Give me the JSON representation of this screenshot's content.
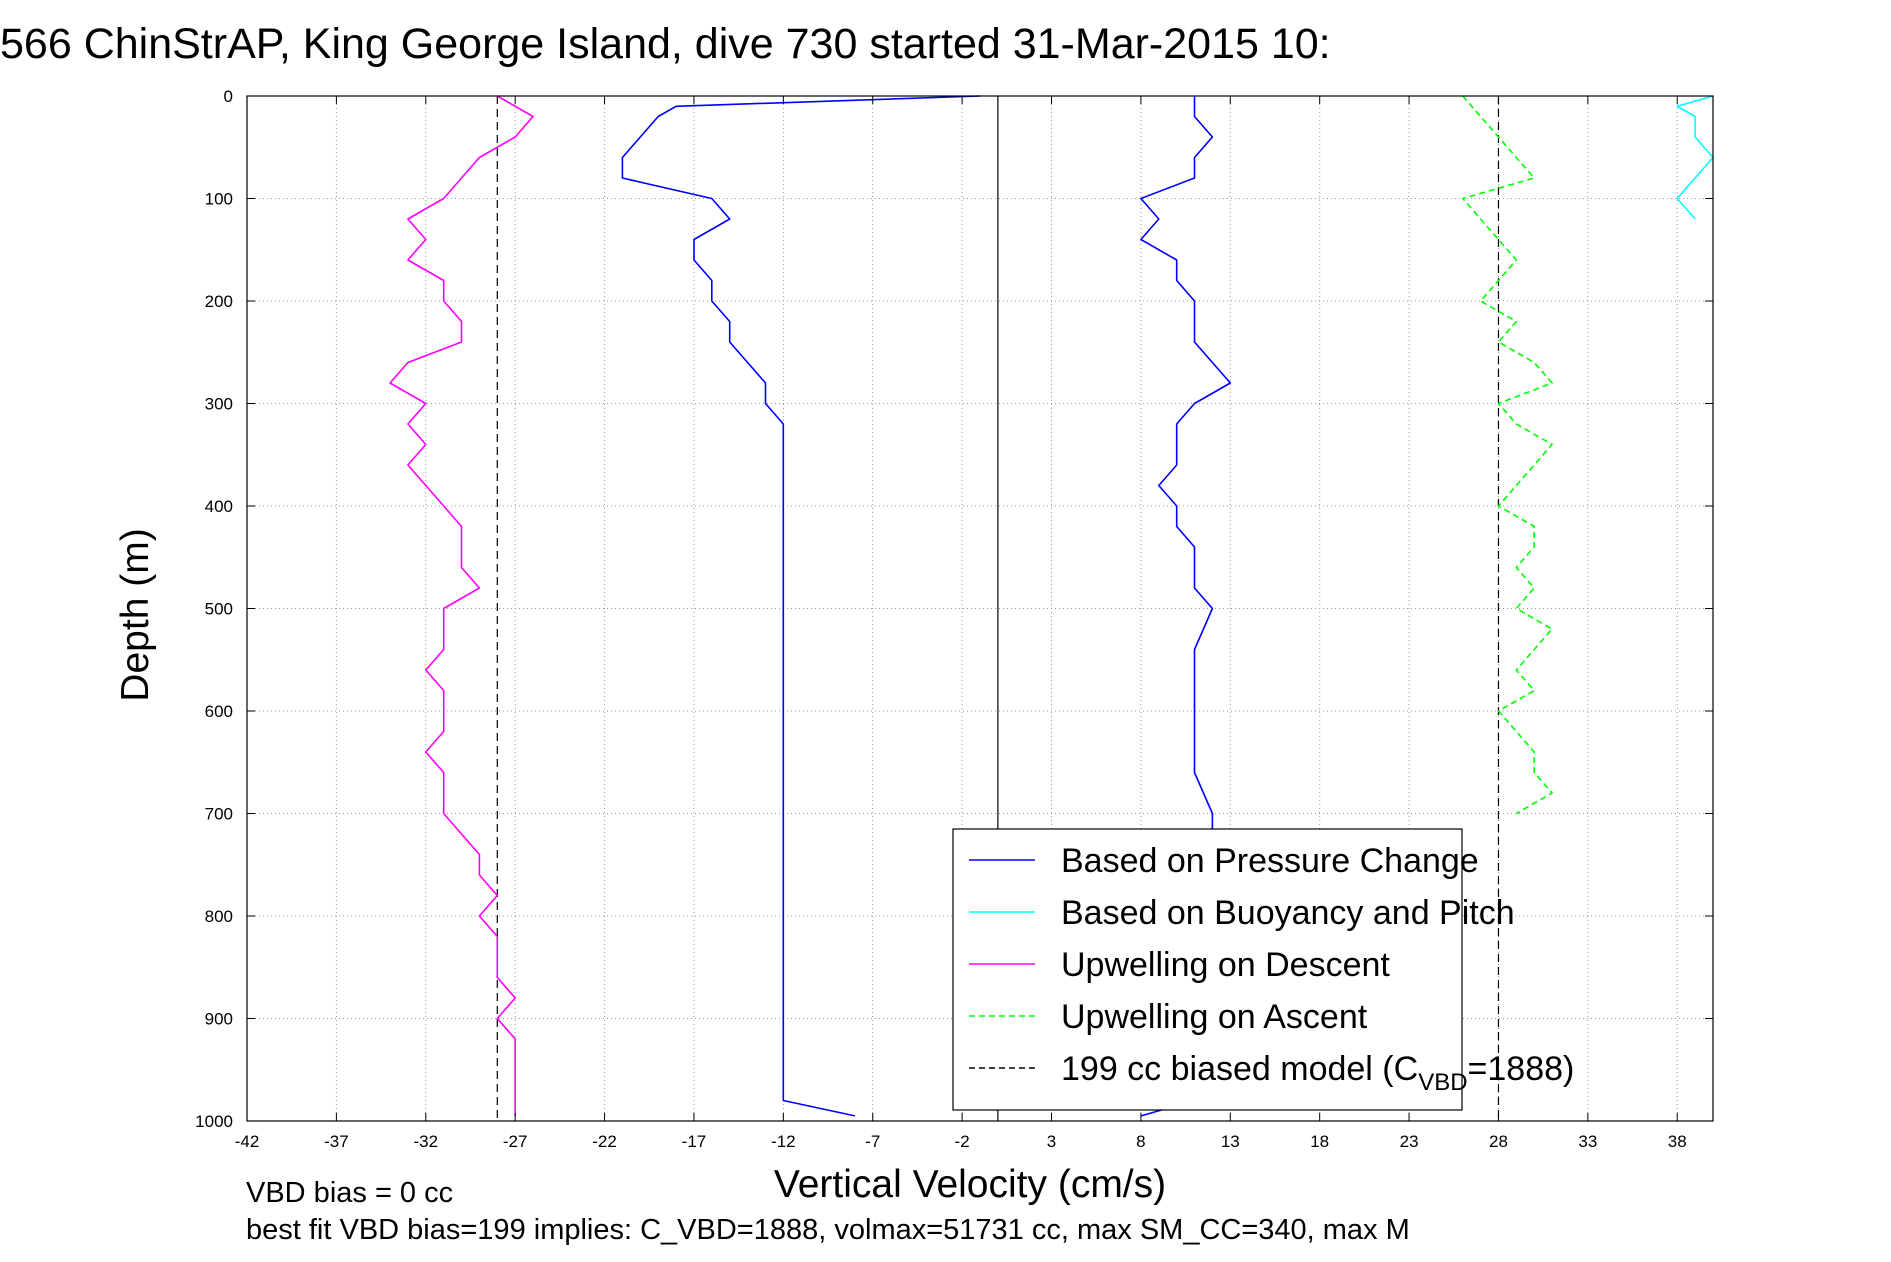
{
  "chart_data": {
    "type": "line",
    "title": "566 ChinStrAP, King George Island, dive 730 started 31-Mar-2015 10:",
    "xlabel": "Vertical Velocity (cm/s)",
    "ylabel": "Depth (m)",
    "xlim": [
      -42,
      40
    ],
    "ylim": [
      1000,
      0
    ],
    "x_ticks": [
      -42,
      -37,
      -32,
      -27,
      -22,
      -17,
      -12,
      -7,
      -2,
      3,
      8,
      13,
      18,
      23,
      28,
      33,
      38
    ],
    "y_ticks": [
      0,
      100,
      200,
      300,
      400,
      500,
      600,
      700,
      800,
      900,
      1000
    ],
    "grid": true,
    "legend_position": "bottom-right",
    "notes": {
      "line1": "VBD bias = 0 cc",
      "line2": "best fit VBD bias=199 implies: C_VBD=1888, volmax=51731 cc, max SM_CC=340, max M"
    },
    "legend": [
      {
        "label": "Based on Pressure Change",
        "color": "#0000ff",
        "style": "solid"
      },
      {
        "label": "Based on Buoyancy and Pitch",
        "color": "#00ffff",
        "style": "solid"
      },
      {
        "label": "Upwelling on Descent",
        "color": "#ff00ff",
        "style": "solid"
      },
      {
        "label": "Upwelling on Ascent",
        "color": "#00ff00",
        "style": "dashed"
      },
      {
        "label": "199 cc biased model (C",
        "sub": "VBD",
        "suffix": "=1888)",
        "color": "#000000",
        "style": "dashed"
      }
    ],
    "vertical_lines": [
      {
        "x": 0,
        "color": "#000000",
        "style": "solid"
      },
      {
        "x": -28,
        "color": "#000000",
        "style": "dashed"
      },
      {
        "x": 28,
        "color": "#000000",
        "style": "dashed"
      }
    ],
    "series": [
      {
        "name": "Upwelling on Descent",
        "color": "#ff00ff",
        "style": "solid",
        "depth": [
          0,
          10,
          20,
          40,
          60,
          80,
          100,
          120,
          140,
          160,
          180,
          200,
          220,
          240,
          260,
          280,
          300,
          320,
          340,
          360,
          380,
          400,
          420,
          440,
          460,
          480,
          500,
          520,
          540,
          560,
          580,
          600,
          620,
          640,
          660,
          680,
          700,
          720,
          740,
          760,
          780,
          800,
          820,
          840,
          860,
          880,
          900,
          920,
          940,
          960,
          980,
          995
        ],
        "x": [
          -28,
          -27,
          -26,
          -27,
          -29,
          -30,
          -31,
          -33,
          -32,
          -33,
          -31,
          -31,
          -30,
          -30,
          -33,
          -34,
          -32,
          -33,
          -32,
          -33,
          -32,
          -31,
          -30,
          -30,
          -30,
          -29,
          -31,
          -31,
          -31,
          -32,
          -31,
          -31,
          -31,
          -32,
          -31,
          -31,
          -31,
          -30,
          -29,
          -29,
          -28,
          -29,
          -28,
          -28,
          -28,
          -27,
          -28,
          -27,
          -27,
          -27,
          -27,
          -27
        ]
      },
      {
        "name": "Based on Pressure Change",
        "color": "#0000ff",
        "style": "solid",
        "depth": [
          0,
          10,
          20,
          40,
          60,
          80,
          100,
          120,
          140,
          160,
          180,
          200,
          220,
          240,
          260,
          280,
          300,
          320,
          340,
          360,
          380,
          400,
          420,
          440,
          460,
          480,
          500,
          540,
          580,
          620,
          660,
          700,
          740,
          780,
          820,
          860,
          900,
          940,
          980,
          995
        ],
        "x": [
          -1,
          -18,
          -19,
          -20,
          -21,
          -21,
          -16,
          -15,
          -17,
          -17,
          -16,
          -16,
          -15,
          -15,
          -14,
          -13,
          -13,
          -12,
          -12,
          -12,
          -12,
          -12,
          -12,
          -12,
          -12,
          -12,
          -12,
          -12,
          -12,
          -12,
          -12,
          -12,
          -12,
          -12,
          -12,
          -12,
          -12,
          -12,
          -12,
          -8
        ]
      },
      {
        "name": "Based on Pressure Change",
        "color": "#0000ff",
        "style": "solid",
        "depth": [
          0,
          20,
          40,
          60,
          80,
          100,
          120,
          140,
          160,
          180,
          200,
          220,
          240,
          260,
          280,
          300,
          320,
          340,
          360,
          380,
          400,
          420,
          440,
          460,
          480,
          500,
          540,
          580,
          620,
          660,
          700,
          740,
          780,
          820,
          860,
          900,
          940,
          980,
          995
        ],
        "x": [
          11,
          11,
          12,
          11,
          11,
          8,
          9,
          8,
          10,
          10,
          11,
          11,
          11,
          12,
          13,
          11,
          10,
          10,
          10,
          9,
          10,
          10,
          11,
          11,
          11,
          12,
          11,
          11,
          11,
          11,
          12,
          12,
          12,
          12,
          12,
          12,
          12,
          11,
          8
        ]
      },
      {
        "name": "Upwelling on Ascent",
        "color": "#00ff00",
        "style": "dashed",
        "depth": [
          0,
          20,
          40,
          60,
          80,
          100,
          120,
          140,
          160,
          180,
          200,
          220,
          240,
          260,
          280,
          300,
          320,
          340,
          360,
          380,
          400,
          420,
          440,
          460,
          480,
          500,
          520,
          540,
          560,
          580,
          600,
          620,
          640,
          660,
          680,
          700
        ],
        "x": [
          26,
          27,
          28,
          29,
          30,
          26,
          27,
          28,
          29,
          28,
          27,
          29,
          28,
          30,
          31,
          28,
          29,
          31,
          30,
          29,
          28,
          30,
          30,
          29,
          30,
          29,
          31,
          30,
          29,
          30,
          28,
          29,
          30,
          30,
          31,
          29
        ]
      },
      {
        "name": "Based on Buoyancy and Pitch",
        "color": "#00ffff",
        "style": "solid",
        "depth": [
          0,
          10,
          20,
          40,
          60,
          80,
          100,
          120
        ],
        "x": [
          40,
          38,
          39,
          39,
          40,
          39,
          38,
          39
        ]
      }
    ]
  }
}
